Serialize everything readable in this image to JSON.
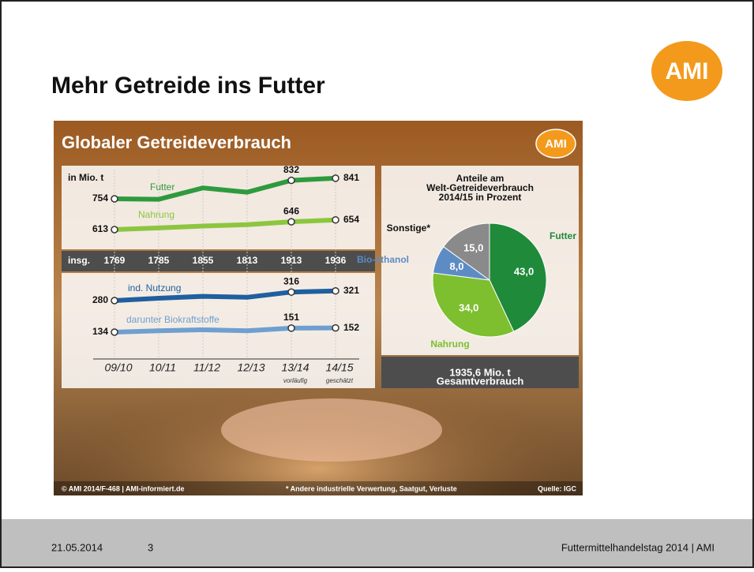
{
  "slide": {
    "title": "Mehr Getreide ins Futter",
    "logo": "AMI",
    "footer": {
      "date": "21.05.2014",
      "page": "3",
      "event": "Futtermittelhandelstag 2014 | AMI"
    }
  },
  "infographic": {
    "title": "Globaler Getreideverbrauch",
    "logo": "AMI",
    "line_chart": {
      "type": "line",
      "unit": "in Mio. t",
      "categories": [
        "09/10",
        "10/11",
        "11/12",
        "12/13",
        "13/14",
        "14/15"
      ],
      "category_notes": [
        null,
        null,
        null,
        null,
        "vorläufig",
        "geschätzt"
      ],
      "totals_label": "insg.",
      "totals": [
        1769,
        1785,
        1855,
        1813,
        1913,
        1936
      ],
      "series": [
        {
          "name": "Futter",
          "color": "#2e9a3e",
          "values": [
            754,
            752,
            800,
            782,
            832,
            841
          ],
          "value_labels": [
            "754",
            null,
            null,
            null,
            "832",
            "841"
          ]
        },
        {
          "name": "Nahrung",
          "color": "#8cc63f",
          "values": [
            613,
            620,
            628,
            634,
            646,
            654
          ],
          "value_labels": [
            "613",
            null,
            null,
            null,
            "646",
            "654"
          ]
        },
        {
          "name": "ind. Nutzung",
          "color": "#1f5fa0",
          "values": [
            280,
            290,
            298,
            294,
            316,
            321
          ],
          "value_labels": [
            "280",
            null,
            null,
            null,
            "316",
            "321"
          ]
        },
        {
          "name": "darunter Biokraftstoffe",
          "color": "#6f9fd0",
          "values": [
            134,
            140,
            144,
            140,
            151,
            152
          ],
          "value_labels": [
            "134",
            null,
            null,
            null,
            "151",
            "152"
          ]
        }
      ]
    },
    "pie_chart": {
      "type": "pie",
      "title": [
        "Anteile am",
        "Welt-Getreideverbrauch",
        "2014/15 in Prozent"
      ],
      "categories": [
        "Futter",
        "Nahrung",
        "Bio-ethanol",
        "Sonstige*"
      ],
      "values": [
        43,
        34,
        8,
        15
      ],
      "value_labels": [
        "43,0",
        "34,0",
        "8,0",
        "15,0"
      ],
      "colors": [
        "#1f8a3a",
        "#7dbf2e",
        "#5d8cc4",
        "#8a8a8a"
      ],
      "total": [
        "1935,6 Mio. t",
        "Gesamtverbrauch"
      ]
    },
    "credits": "© AMI 2014/F-468 | AMI-informiert.de",
    "footnote": "* Andere industrielle Verwertung, Saatgut, Verluste",
    "source": "Quelle: IGC"
  }
}
